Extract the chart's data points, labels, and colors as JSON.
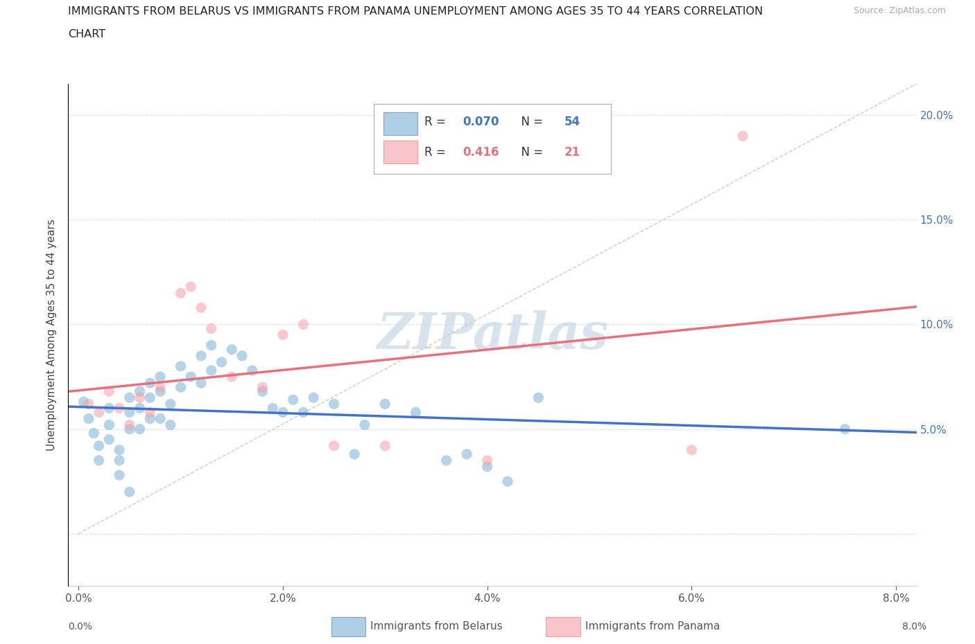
{
  "title_line1": "IMMIGRANTS FROM BELARUS VS IMMIGRANTS FROM PANAMA UNEMPLOYMENT AMONG AGES 35 TO 44 YEARS CORRELATION",
  "title_line2": "CHART",
  "source": "Source: ZipAtlas.com",
  "ylabel": "Unemployment Among Ages 35 to 44 years",
  "xlim": [
    -0.001,
    0.082
  ],
  "ylim": [
    -0.025,
    0.215
  ],
  "xticks": [
    0.0,
    0.02,
    0.04,
    0.06,
    0.08
  ],
  "xtick_labels": [
    "0.0%",
    "2.0%",
    "4.0%",
    "6.0%",
    "8.0%"
  ],
  "yticks": [
    0.0,
    0.05,
    0.1,
    0.15,
    0.2
  ],
  "ytick_labels": [
    "",
    "5.0%",
    "10.0%",
    "15.0%",
    "20.0%"
  ],
  "belarus_color": "#7bafd4",
  "panama_color": "#f4a0a8",
  "belarus_line_color": "#4472c4",
  "panama_line_color": "#e8707a",
  "diag_color": "#cccccc",
  "belarus_R": 0.07,
  "belarus_N": 54,
  "panama_R": 0.416,
  "panama_N": 21,
  "watermark_text": "ZIPatlas",
  "watermark_color": "#c8d8e8",
  "background_color": "#ffffff",
  "grid_color": "#e0e0e0",
  "legend_label_belarus": "Immigrants from Belarus",
  "legend_label_panama": "Immigrants from Panama",
  "belarus_scatter_x": [
    0.0005,
    0.001,
    0.0015,
    0.002,
    0.002,
    0.003,
    0.003,
    0.003,
    0.004,
    0.004,
    0.004,
    0.005,
    0.005,
    0.005,
    0.005,
    0.006,
    0.006,
    0.006,
    0.007,
    0.007,
    0.007,
    0.008,
    0.008,
    0.008,
    0.009,
    0.009,
    0.01,
    0.01,
    0.011,
    0.012,
    0.012,
    0.013,
    0.013,
    0.014,
    0.015,
    0.016,
    0.017,
    0.018,
    0.019,
    0.02,
    0.021,
    0.022,
    0.023,
    0.025,
    0.027,
    0.028,
    0.03,
    0.033,
    0.036,
    0.038,
    0.04,
    0.042,
    0.045,
    0.075
  ],
  "belarus_scatter_y": [
    0.063,
    0.055,
    0.048,
    0.042,
    0.035,
    0.06,
    0.052,
    0.045,
    0.04,
    0.035,
    0.028,
    0.065,
    0.058,
    0.05,
    0.02,
    0.068,
    0.06,
    0.05,
    0.072,
    0.065,
    0.055,
    0.075,
    0.068,
    0.055,
    0.062,
    0.052,
    0.08,
    0.07,
    0.075,
    0.085,
    0.072,
    0.09,
    0.078,
    0.082,
    0.088,
    0.085,
    0.078,
    0.068,
    0.06,
    0.058,
    0.064,
    0.058,
    0.065,
    0.062,
    0.038,
    0.052,
    0.062,
    0.058,
    0.035,
    0.038,
    0.032,
    0.025,
    0.065,
    0.05
  ],
  "panama_scatter_x": [
    0.001,
    0.002,
    0.003,
    0.004,
    0.005,
    0.006,
    0.007,
    0.008,
    0.01,
    0.011,
    0.012,
    0.013,
    0.015,
    0.018,
    0.02,
    0.022,
    0.025,
    0.03,
    0.04,
    0.06,
    0.065
  ],
  "panama_scatter_y": [
    0.062,
    0.058,
    0.068,
    0.06,
    0.052,
    0.065,
    0.058,
    0.07,
    0.115,
    0.118,
    0.108,
    0.098,
    0.075,
    0.07,
    0.095,
    0.1,
    0.042,
    0.042,
    0.035,
    0.04,
    0.19
  ]
}
